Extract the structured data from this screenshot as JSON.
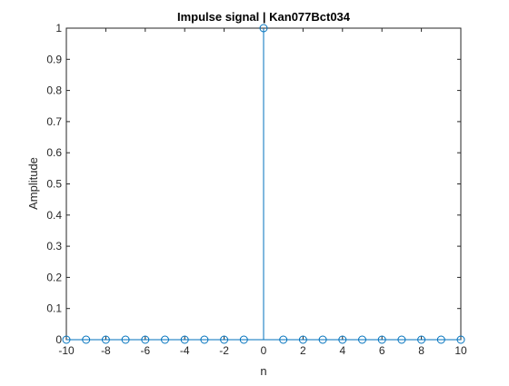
{
  "chart_data": {
    "type": "stem",
    "title": "Impulse signal | Kan077Bct034",
    "xlabel": "n",
    "ylabel": "Amplitude",
    "xlim": [
      -10,
      10
    ],
    "ylim": [
      0,
      1
    ],
    "xticks": [
      -10,
      -8,
      -6,
      -4,
      -2,
      0,
      2,
      4,
      6,
      8,
      10
    ],
    "yticks": [
      0,
      0.1,
      0.2,
      0.3,
      0.4,
      0.5,
      0.6,
      0.7,
      0.8,
      0.9,
      1
    ],
    "grid": false,
    "x": [
      -10,
      -9,
      -8,
      -7,
      -6,
      -5,
      -4,
      -3,
      -2,
      -1,
      0,
      1,
      2,
      3,
      4,
      5,
      6,
      7,
      8,
      9,
      10
    ],
    "values": [
      0,
      0,
      0,
      0,
      0,
      0,
      0,
      0,
      0,
      0,
      1,
      0,
      0,
      0,
      0,
      0,
      0,
      0,
      0,
      0,
      0
    ],
    "colors": {
      "series": "#0072BD",
      "axes": "#262626",
      "background": "#ffffff"
    }
  }
}
